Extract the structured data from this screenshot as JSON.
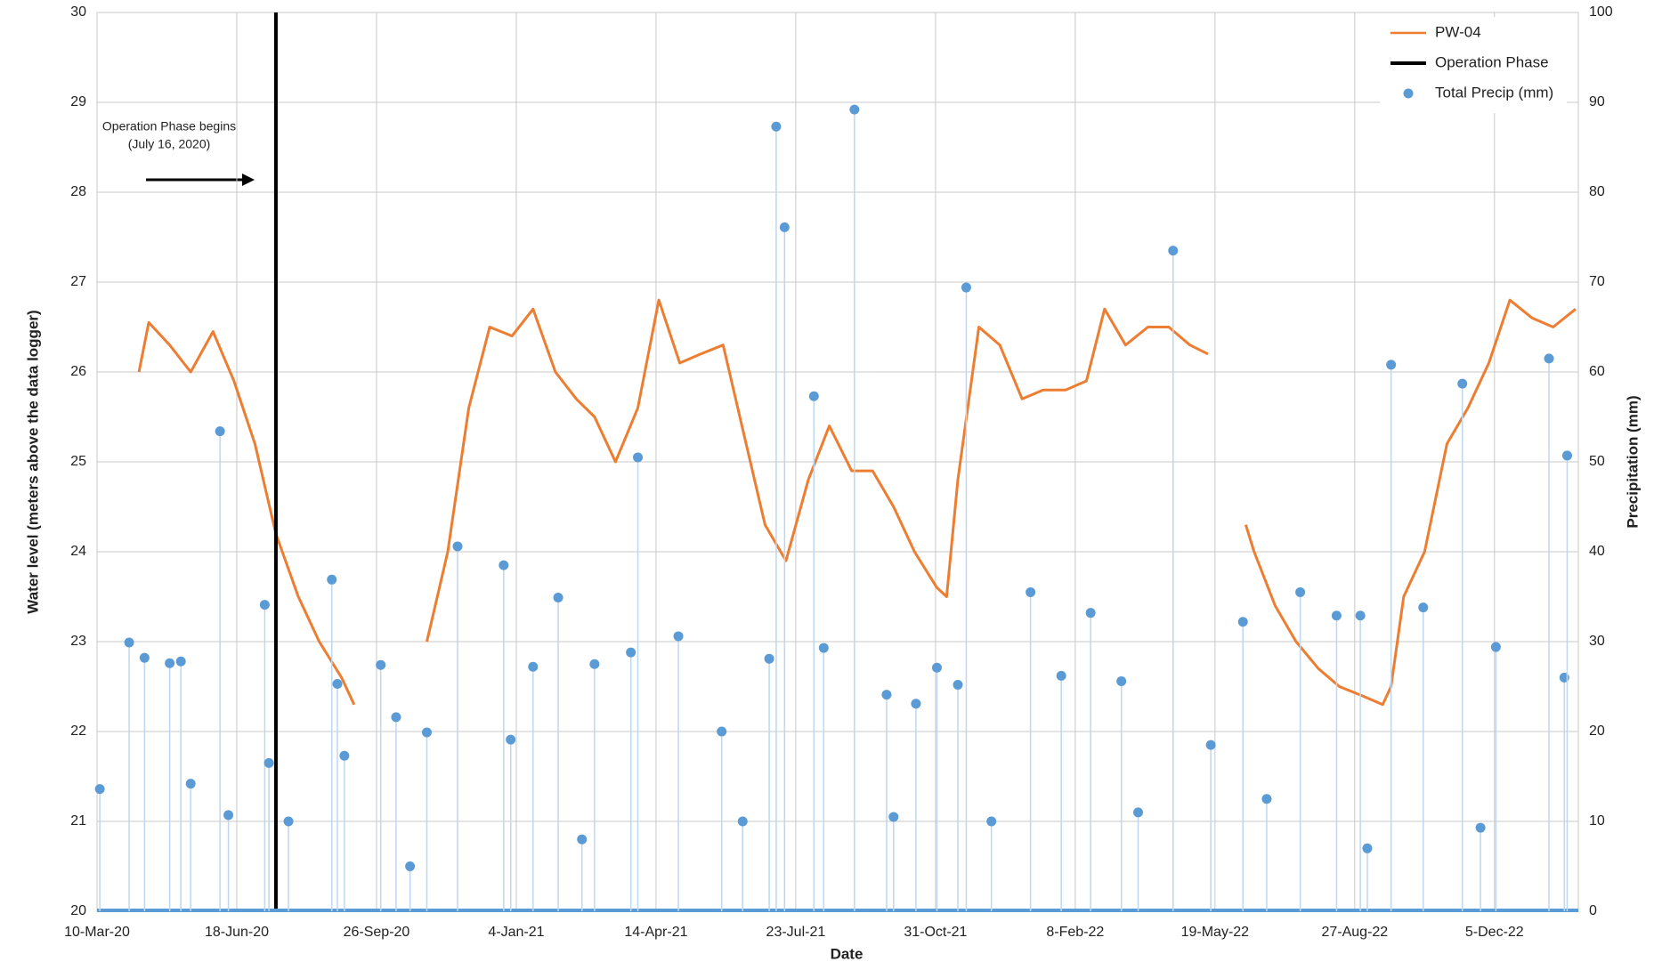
{
  "chart_data": {
    "type": "line",
    "xlabel": "Date",
    "ylabel": "Water level (meters above the data logger)",
    "y2label": "Precipitation (mm)",
    "annotations": [
      "Operation Phase begins",
      "(July 16, 2020)"
    ],
    "xlim": [
      "2020-03-10",
      "2023-02-03"
    ],
    "xticks": [
      {
        "value": "2020-03-10",
        "label": "10-Mar-20"
      },
      {
        "value": "2020-06-18",
        "label": "18-Jun-20"
      },
      {
        "value": "2020-09-26",
        "label": "26-Sep-20"
      },
      {
        "value": "2021-01-04",
        "label": "4-Jan-21"
      },
      {
        "value": "2021-04-14",
        "label": "14-Apr-21"
      },
      {
        "value": "2021-07-23",
        "label": "23-Jul-21"
      },
      {
        "value": "2021-10-31",
        "label": "31-Oct-21"
      },
      {
        "value": "2022-02-08",
        "label": "8-Feb-22"
      },
      {
        "value": "2022-05-19",
        "label": "19-May-22"
      },
      {
        "value": "2022-08-27",
        "label": "27-Aug-22"
      },
      {
        "value": "2022-12-05",
        "label": "5-Dec-22"
      }
    ],
    "ylim": [
      20,
      30
    ],
    "yticks": [
      20,
      21,
      22,
      23,
      24,
      25,
      26,
      27,
      28,
      29,
      30
    ],
    "y2lim": [
      0,
      100
    ],
    "y2ticks": [
      0,
      10,
      20,
      30,
      40,
      50,
      60,
      70,
      80,
      90,
      100
    ],
    "grid": true,
    "legend": "top-right",
    "series": [
      {
        "name": "PW-04",
        "color": "#ed7d31",
        "kind": "line",
        "x": [
          "2020-04-09",
          "2020-04-16",
          "2020-05-01",
          "2020-05-16",
          "2020-06-01",
          "2020-06-16",
          "2020-07-01",
          "2020-07-16",
          "2020-08-01",
          "2020-08-16",
          "2020-09-01",
          "2020-09-10",
          "2020-10-01",
          "2020-11-01",
          "2020-11-16",
          "2020-12-01",
          "2020-12-16",
          "2021-01-01",
          "2021-01-16",
          "2021-02-01",
          "2021-02-16",
          "2021-03-01",
          "2021-03-16",
          "2021-04-01",
          "2021-04-16",
          "2021-05-01",
          "2021-05-16",
          "2021-06-01",
          "2021-06-16",
          "2021-07-01",
          "2021-07-16",
          "2021-08-01",
          "2021-08-16",
          "2021-09-01",
          "2021-09-16",
          "2021-10-01",
          "2021-10-16",
          "2021-11-01",
          "2021-11-08",
          "2021-11-16",
          "2021-12-01",
          "2021-12-16",
          "2022-01-01",
          "2022-01-16",
          "2022-02-01",
          "2022-02-16",
          "2022-03-01",
          "2022-03-16",
          "2022-04-01",
          "2022-04-16",
          "2022-05-01",
          "2022-05-14",
          "2022-05-25",
          "2022-06-10",
          "2022-06-16",
          "2022-07-01",
          "2022-07-16",
          "2022-08-01",
          "2022-08-16",
          "2022-09-01",
          "2022-09-16",
          "2022-09-22",
          "2022-10-01",
          "2022-10-16",
          "2022-11-01",
          "2022-11-16",
          "2022-12-01",
          "2022-12-16",
          "2023-01-01",
          "2023-01-16",
          "2023-02-01"
        ],
        "values": [
          26.0,
          26.55,
          26.3,
          26.0,
          26.45,
          25.9,
          25.2,
          24.2,
          23.5,
          23.0,
          22.6,
          22.3,
          null,
          23.0,
          24.0,
          25.6,
          26.5,
          26.4,
          26.7,
          26.0,
          25.7,
          25.5,
          25.0,
          25.6,
          26.8,
          26.1,
          26.2,
          26.3,
          25.3,
          24.3,
          23.9,
          24.8,
          25.4,
          24.9,
          24.9,
          24.5,
          24.0,
          23.6,
          23.5,
          24.8,
          26.5,
          26.3,
          25.7,
          25.8,
          25.8,
          25.9,
          26.7,
          26.3,
          26.5,
          26.5,
          26.3,
          26.2,
          null,
          24.3,
          24.0,
          23.4,
          23.0,
          22.7,
          22.5,
          22.4,
          22.3,
          22.5,
          23.5,
          24.0,
          25.2,
          25.6,
          26.1,
          26.8,
          26.6,
          26.5,
          26.7
        ]
      },
      {
        "name": "Operation Phase",
        "color": "#000000",
        "kind": "vline",
        "x": [
          "2020-07-16"
        ]
      },
      {
        "name": "Total Precip (mm)",
        "color": "#5b9bd5",
        "kind": "stem",
        "axis": "y2",
        "x": [
          "2020-03-12",
          "2020-04-02",
          "2020-04-13",
          "2020-05-01",
          "2020-05-09",
          "2020-05-16",
          "2020-06-06",
          "2020-06-12",
          "2020-07-08",
          "2020-07-11",
          "2020-07-25",
          "2020-08-25",
          "2020-08-29",
          "2020-09-03",
          "2020-09-29",
          "2020-10-10",
          "2020-10-20",
          "2020-11-01",
          "2020-11-23",
          "2020-12-26",
          "2020-12-31",
          "2021-01-16",
          "2021-02-03",
          "2021-02-20",
          "2021-03-01",
          "2021-03-27",
          "2021-04-01",
          "2021-04-30",
          "2021-05-31",
          "2021-06-15",
          "2021-07-04",
          "2021-07-09",
          "2021-07-15",
          "2021-08-05",
          "2021-08-12",
          "2021-09-03",
          "2021-09-26",
          "2021-10-01",
          "2021-10-17",
          "2021-11-01",
          "2021-11-16",
          "2021-11-22",
          "2021-12-10",
          "2022-01-07",
          "2022-01-29",
          "2022-02-19",
          "2022-03-13",
          "2022-03-25",
          "2022-04-19",
          "2022-05-16",
          "2022-06-08",
          "2022-06-25",
          "2022-07-19",
          "2022-08-14",
          "2022-08-31",
          "2022-09-05",
          "2022-09-22",
          "2022-10-15",
          "2022-11-12",
          "2022-11-25",
          "2022-12-06",
          "2023-01-13",
          "2023-01-24",
          "2023-01-26"
        ],
        "values": [
          13.6,
          29.9,
          28.2,
          27.6,
          27.8,
          14.2,
          53.4,
          10.7,
          34.1,
          16.5,
          10,
          36.9,
          25.3,
          17.3,
          27.4,
          21.6,
          5,
          19.9,
          40.6,
          38.5,
          19.1,
          27.2,
          34.9,
          8,
          27.5,
          28.8,
          50.5,
          30.6,
          20.0,
          10,
          28.1,
          87.3,
          76.1,
          57.3,
          29.3,
          89.2,
          24.1,
          10.5,
          23.1,
          27.1,
          25.2,
          69.4,
          10,
          35.5,
          26.2,
          33.2,
          25.6,
          11,
          73.5,
          18.5,
          32.2,
          12.5,
          35.5,
          32.9,
          32.9,
          7,
          60.8,
          33.8,
          58.7,
          9.3,
          29.4,
          61.5,
          26.0,
          50.7
        ]
      }
    ]
  }
}
